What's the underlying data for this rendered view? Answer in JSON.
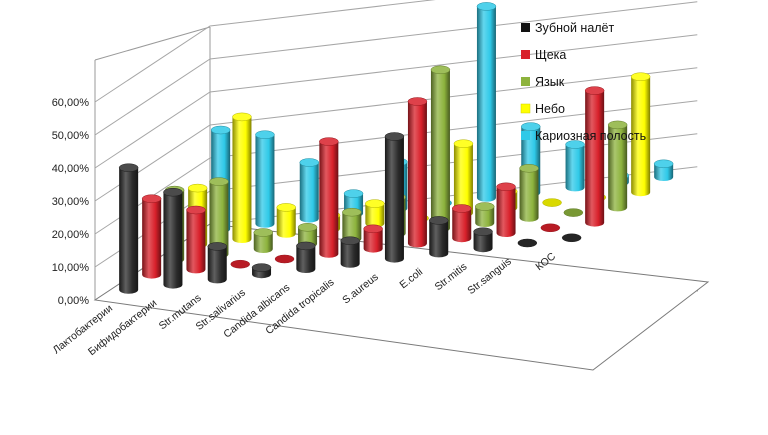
{
  "chart_data": {
    "type": "bar",
    "subtype": "3d-column",
    "title": "",
    "xlabel": "",
    "ylabel": "",
    "ylim": [
      0,
      60
    ],
    "y_ticks": [
      "0,00%",
      "10,00%",
      "20,00%",
      "30,00%",
      "40,00%",
      "50,00%",
      "60,00%"
    ],
    "categories": [
      "Лактобактерии",
      "Бифидобактерии",
      "Str.mutans",
      "Str.salivarius",
      "Candida albicans",
      "Candida tropicalis",
      "S.aureus",
      "E.coli",
      "Str.mitis",
      "Str.sanguis",
      "КОС"
    ],
    "series": [
      {
        "name": "Зубной налёт",
        "color": "#2b2b2b",
        "values": [
          37,
          28,
          10,
          2,
          7,
          7,
          37,
          10,
          5,
          0,
          0
        ]
      },
      {
        "name": "Щека",
        "color": "#d8202a",
        "values": [
          23,
          18,
          0,
          0,
          34,
          6,
          43,
          9,
          14,
          0,
          40
        ]
      },
      {
        "name": "Язык",
        "color": "#8db33d",
        "values": [
          21,
          22,
          5,
          5,
          8,
          11,
          48,
          5,
          15,
          0,
          25
        ]
      },
      {
        "name": "Небо",
        "color": "#ffff00",
        "values": [
          17,
          37,
          8,
          4,
          6,
          0,
          21,
          5,
          0,
          0,
          35
        ]
      },
      {
        "name": "Кариозная полость",
        "color": "#2fc9e8",
        "values": [
          30,
          27,
          17,
          6,
          14,
          0,
          58,
          20,
          13,
          2,
          4
        ]
      }
    ],
    "legend_position": "top-right",
    "grid": true
  }
}
